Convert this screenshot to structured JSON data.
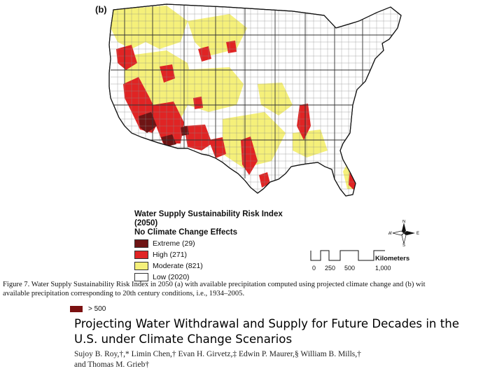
{
  "figure": {
    "panel_label": "(b)",
    "legend": {
      "title_line1": "Water Supply Sustainability Risk Index (2050)",
      "title_line2": "No Climate Change Effects",
      "items": [
        {
          "label": "Extreme (29)",
          "color": "#6e1414"
        },
        {
          "label": "High (271)",
          "color": "#e02424"
        },
        {
          "label": "Moderate (821)",
          "color": "#f5f07a"
        },
        {
          "label": "Low (2020)",
          "color": "#ffffff"
        }
      ]
    },
    "compass": {
      "n": "N",
      "s": "S",
      "e": "E",
      "w": "W"
    },
    "scale": {
      "title": "Kilometers",
      "ticks": [
        "0",
        "250",
        "500",
        "1,000"
      ]
    }
  },
  "caption": {
    "line1": "Figure 7. Water Supply Sustainability Risk Index in 2050 (a) with available precipitation computed using projected climate change and (b) wit",
    "line2": "available precipitation corresponding to 20th century conditions, i.e., 1934–2005."
  },
  "overlap_legend": {
    "label": "> 500",
    "color": "#7b1111"
  },
  "paper": {
    "title_line1": "Projecting Water Withdrawal and Supply for Future Decades in the",
    "title_line2": "U.S. under Climate Change Scenarios",
    "authors_line1": "Sujoy B. Roy,†,* Limin Chen,† Evan H. Girvetz,‡ Edwin P. Maurer,§ William B. Mills,†",
    "authors_line2": "and Thomas M. Grieb†"
  }
}
